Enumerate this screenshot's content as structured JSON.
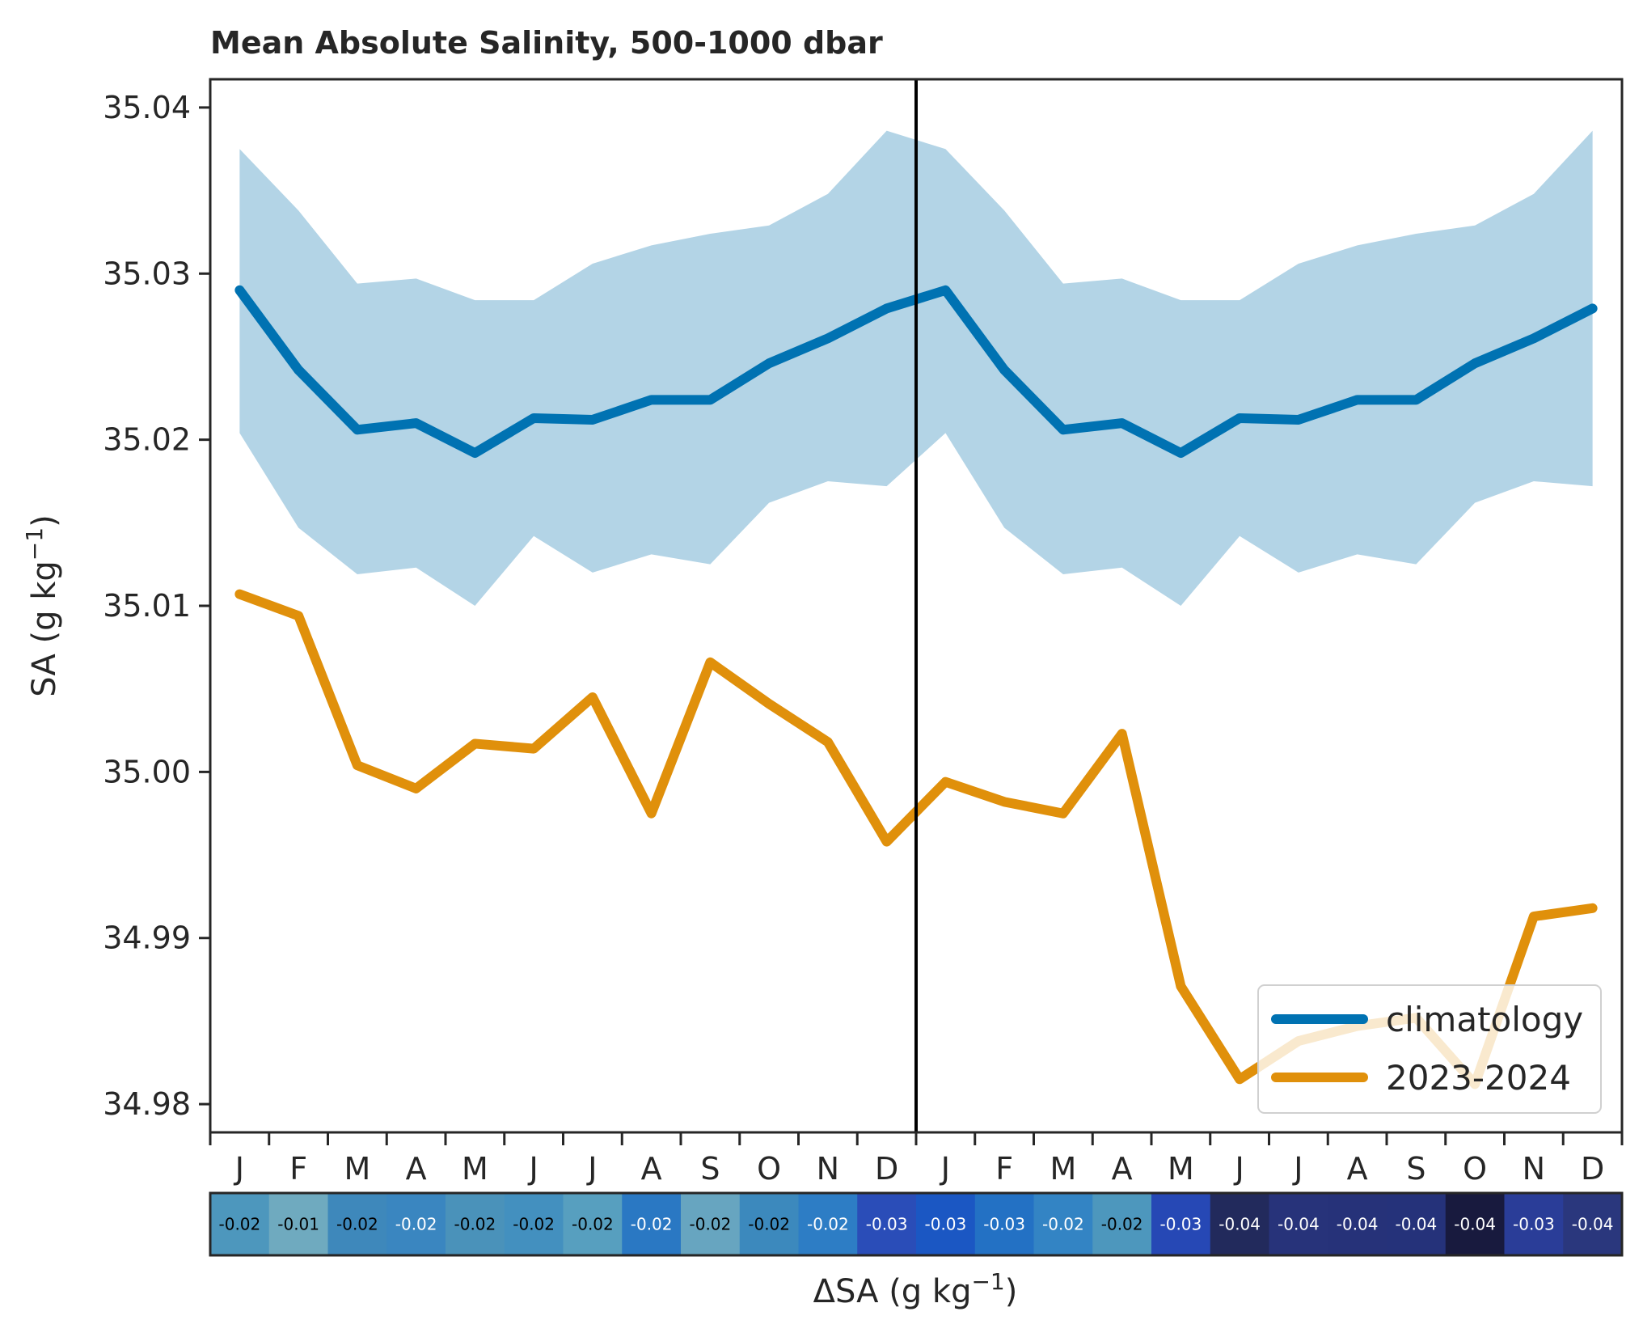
{
  "chart_data": {
    "type": "line",
    "title": "Mean Absolute Salinity, 500-1000 dbar",
    "ylabel_base": "SA (g kg",
    "ylabel_sup": "−1",
    "ylabel_end": ")",
    "ylim": [
      34.9783,
      35.0417
    ],
    "yticks": [
      "34.98",
      "34.99",
      "35.00",
      "35.01",
      "35.02",
      "35.03",
      "35.04"
    ],
    "ytick_values": [
      34.98,
      34.99,
      35.0,
      35.01,
      35.02,
      35.03,
      35.04
    ],
    "months": [
      "J",
      "F",
      "M",
      "A",
      "M",
      "J",
      "J",
      "A",
      "S",
      "O",
      "N",
      "D",
      "J",
      "F",
      "M",
      "A",
      "M",
      "J",
      "J",
      "A",
      "S",
      "O",
      "N",
      "D"
    ],
    "year_boundary_after": 12,
    "series": [
      {
        "name": "climatology",
        "color": "#0072b2",
        "values": [
          35.029,
          35.0242,
          35.0206,
          35.021,
          35.0192,
          35.0213,
          35.0212,
          35.0224,
          35.0224,
          35.0246,
          35.0261,
          35.0279,
          35.029,
          35.0242,
          35.0206,
          35.021,
          35.0192,
          35.0213,
          35.0212,
          35.0224,
          35.0224,
          35.0246,
          35.0261,
          35.0279
        ]
      },
      {
        "name": "2023-2024",
        "color": "#e0900b",
        "values": [
          35.0107,
          35.0094,
          35.0004,
          34.999,
          35.0017,
          35.0014,
          35.0045,
          34.9975,
          35.0066,
          35.0041,
          35.0018,
          34.9958,
          34.9994,
          34.9982,
          34.9975,
          35.0023,
          34.9871,
          34.9815,
          34.9838,
          34.9847,
          34.9852,
          34.9812,
          34.9913,
          34.9918
        ]
      }
    ],
    "band": {
      "color": "#b3d4e6",
      "lower": [
        35.0204,
        35.0147,
        35.0119,
        35.0123,
        35.01,
        35.0142,
        35.012,
        35.0131,
        35.0125,
        35.0162,
        35.0175,
        35.0172,
        35.0204,
        35.0147,
        35.0119,
        35.0123,
        35.01,
        35.0142,
        35.012,
        35.0131,
        35.0125,
        35.0162,
        35.0175,
        35.0172
      ],
      "upper": [
        35.0375,
        35.0338,
        35.0294,
        35.0297,
        35.0284,
        35.0284,
        35.0306,
        35.0317,
        35.0324,
        35.0329,
        35.0348,
        35.0386,
        35.0375,
        35.0338,
        35.0294,
        35.0297,
        35.0284,
        35.0284,
        35.0306,
        35.0317,
        35.0324,
        35.0329,
        35.0348,
        35.0386
      ]
    },
    "legend_placement": "lower-right",
    "delta": {
      "xlabel_base": "ΔSA (g kg",
      "xlabel_sup": "−1",
      "xlabel_end": ")",
      "labels": [
        "-0.02",
        "-0.01",
        "-0.02",
        "-0.02",
        "-0.02",
        "-0.02",
        "-0.02",
        "-0.02",
        "-0.02",
        "-0.02",
        "-0.02",
        "-0.03",
        "-0.03",
        "-0.03",
        "-0.02",
        "-0.02",
        "-0.03",
        "-0.04",
        "-0.04",
        "-0.04",
        "-0.04",
        "-0.04",
        "-0.03",
        "-0.04"
      ],
      "values": [
        -0.0183,
        -0.0148,
        -0.0202,
        -0.022,
        -0.0175,
        -0.0199,
        -0.0167,
        -0.0249,
        -0.0158,
        -0.0205,
        -0.0243,
        -0.0321,
        -0.0296,
        -0.026,
        -0.0231,
        -0.0187,
        -0.0321,
        -0.0397,
        -0.0374,
        -0.0377,
        -0.0372,
        -0.0434,
        -0.0348,
        -0.0361
      ],
      "cell_colors": [
        "#4d97bd",
        "#6faabf",
        "#3e88bb",
        "#3a86c0",
        "#4a92ba",
        "#4390bf",
        "#579fbf",
        "#2a78c3",
        "#67a5c0",
        "#3c89bd",
        "#2d7dc5",
        "#2a4db8",
        "#1b57c3",
        "#2371c4",
        "#3384c4",
        "#4d97bd",
        "#2648b5",
        "#222a5c",
        "#27337a",
        "#263279",
        "#25327a",
        "#181a3e",
        "#2a3d98",
        "#2a377d"
      ],
      "text_colors": [
        "#000000",
        "#000000",
        "#000000",
        "#ffffff",
        "#000000",
        "#000000",
        "#000000",
        "#ffffff",
        "#000000",
        "#000000",
        "#ffffff",
        "#ffffff",
        "#ffffff",
        "#ffffff",
        "#ffffff",
        "#000000",
        "#ffffff",
        "#ffffff",
        "#ffffff",
        "#ffffff",
        "#ffffff",
        "#ffffff",
        "#ffffff",
        "#ffffff"
      ]
    }
  }
}
